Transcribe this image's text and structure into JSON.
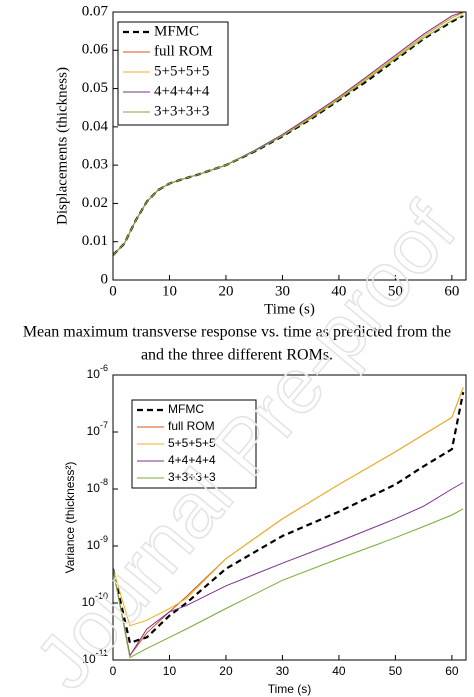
{
  "chart_data": [
    {
      "type": "line",
      "xlabel": "Time (s)",
      "ylabel": "Displacements (thickness)",
      "x": [
        0,
        2,
        4,
        6,
        8,
        10,
        12,
        15,
        20,
        25,
        30,
        35,
        40,
        45,
        50,
        55,
        60,
        62
      ],
      "series": [
        {
          "name": "MFMC",
          "color": "#000000",
          "dashed": true,
          "values": [
            0.0065,
            0.0095,
            0.0155,
            0.0205,
            0.0235,
            0.0252,
            0.0262,
            0.0275,
            0.03,
            0.0335,
            0.0375,
            0.042,
            0.047,
            0.052,
            0.0575,
            0.063,
            0.0675,
            0.069
          ]
        },
        {
          "name": "full ROM",
          "color": "#d95319",
          "values": [
            0.0065,
            0.0095,
            0.0155,
            0.0205,
            0.0235,
            0.0252,
            0.0262,
            0.0275,
            0.03,
            0.0337,
            0.0378,
            0.0425,
            0.0475,
            0.0528,
            0.0582,
            0.0637,
            0.0685,
            0.0698
          ]
        },
        {
          "name": "5+5+5+5",
          "color": "#edb120",
          "values": [
            0.0065,
            0.0095,
            0.0155,
            0.0205,
            0.0235,
            0.0252,
            0.0262,
            0.0275,
            0.03,
            0.0337,
            0.0378,
            0.0425,
            0.0475,
            0.0528,
            0.0582,
            0.0637,
            0.0685,
            0.0698
          ]
        },
        {
          "name": "4+4+4+4",
          "color": "#7e2f8e",
          "values": [
            0.0065,
            0.0095,
            0.0155,
            0.0205,
            0.0235,
            0.0252,
            0.0262,
            0.0275,
            0.03,
            0.0338,
            0.038,
            0.0428,
            0.0478,
            0.0532,
            0.0587,
            0.0642,
            0.069,
            0.07
          ]
        },
        {
          "name": "3+3+3+3",
          "color": "#77ac30",
          "values": [
            0.0065,
            0.0095,
            0.0155,
            0.0205,
            0.0235,
            0.0252,
            0.0262,
            0.0275,
            0.03,
            0.0336,
            0.0376,
            0.0422,
            0.0472,
            0.0524,
            0.0578,
            0.0632,
            0.0678,
            0.0692
          ]
        }
      ],
      "xlim": [
        0,
        62.5
      ],
      "xticks": [
        0,
        10,
        20,
        30,
        40,
        50,
        60
      ],
      "ylim": [
        0,
        0.07
      ],
      "yticks": [
        0,
        0.01,
        0.02,
        0.03,
        0.04,
        0.05,
        0.06,
        0.07
      ],
      "legend": "upper-left",
      "log_y": false
    },
    {
      "type": "line",
      "xlabel": "Time (s)",
      "ylabel": "Variance (thickness²)",
      "x": [
        0,
        3,
        6,
        10,
        13,
        20,
        30,
        40,
        50,
        55,
        60,
        62
      ],
      "series": [
        {
          "name": "MFMC",
          "color": "#000000",
          "dashed": true,
          "values": [
            4e-10,
            2e-11,
            2.5e-11,
            6e-11,
            1e-10,
            4e-10,
            1.5e-09,
            4e-09,
            1.2e-08,
            2.5e-08,
            5e-08,
            5e-07
          ]
        },
        {
          "name": "full ROM",
          "color": "#d95319",
          "values": [
            4e-10,
            1.2e-11,
            3e-11,
            7e-11,
            1.3e-10,
            6e-10,
            3e-09,
            1.2e-08,
            4.5e-08,
            9e-08,
            1.8e-07,
            6e-07
          ]
        },
        {
          "name": "5+5+5+5",
          "color": "#edb120",
          "values": [
            4e-10,
            4e-11,
            5e-11,
            8e-11,
            1.2e-10,
            6e-10,
            3e-09,
            1.2e-08,
            4.5e-08,
            9e-08,
            1.8e-07,
            6e-07
          ]
        },
        {
          "name": "4+4+4+4",
          "color": "#7e2f8e",
          "values": [
            4e-10,
            1.2e-11,
            3.5e-11,
            7e-11,
            9e-11,
            2e-10,
            5e-10,
            1.2e-09,
            3e-09,
            5e-09,
            1e-08,
            1.3e-08
          ]
        },
        {
          "name": "3+3+3+3",
          "color": "#77ac30",
          "values": [
            4e-10,
            1.1e-11,
            1.6e-11,
            2.5e-11,
            3.5e-11,
            8e-11,
            2.5e-10,
            6e-10,
            1.4e-09,
            2.2e-09,
            3.5e-09,
            4.5e-09
          ]
        }
      ],
      "xlim": [
        0,
        62.5
      ],
      "xticks": [
        0,
        10,
        20,
        30,
        40,
        50,
        60
      ],
      "ylim": [
        1e-11,
        1e-06
      ],
      "yticks": [
        {
          "value": 1e-11,
          "label": "10-11"
        },
        {
          "value": 1e-10,
          "label": "10-10"
        },
        {
          "value": 1e-09,
          "label": "10-9"
        },
        {
          "value": 1e-08,
          "label": "10-8"
        },
        {
          "value": 1e-07,
          "label": "10-7"
        },
        {
          "value": 1e-06,
          "label": "10-6"
        }
      ],
      "legend": "upper-left",
      "log_y": true
    }
  ],
  "caption": {
    "lines": [
      "Mean maximum transverse response vs. time as predicted from the",
      "and the three different ROMs."
    ]
  },
  "watermark": "Journal Pre-proof"
}
